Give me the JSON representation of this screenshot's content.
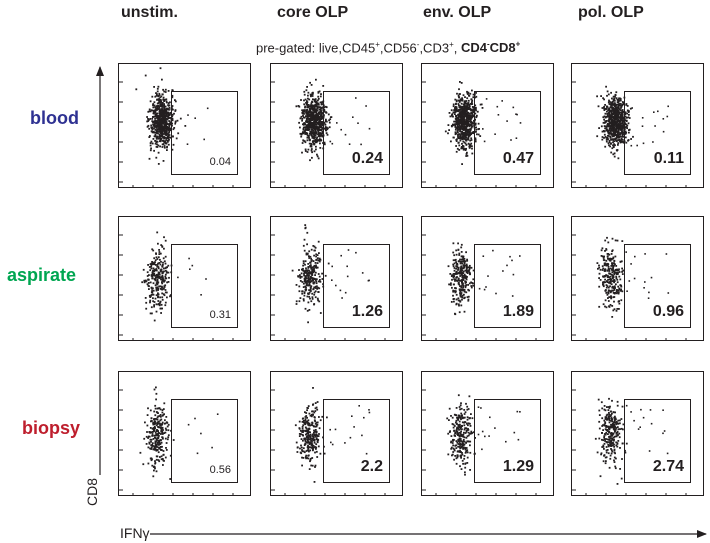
{
  "columns": [
    "unstim.",
    "core OLP",
    "env. OLP",
    "pol. OLP"
  ],
  "rows": [
    {
      "label": "blood",
      "color": "#2e3192"
    },
    {
      "label": "aspirate",
      "color": "#00a651"
    },
    {
      "label": "biopsy",
      "color": "#be1e2d"
    }
  ],
  "pregate": {
    "prefix": "pre-gated: live,CD45",
    "cd56": ",CD56",
    "cd3": ",CD3",
    "cd4": "CD4",
    "cd8": "CD8"
  },
  "axes": {
    "x_label": "IFNγ",
    "y_label": "CD8"
  },
  "panels": [
    [
      {
        "pct": "0.04",
        "bold": false
      },
      {
        "pct": "0.24",
        "bold": true
      },
      {
        "pct": "0.47",
        "bold": true
      },
      {
        "pct": "0.11",
        "bold": true
      }
    ],
    [
      {
        "pct": "0.31",
        "bold": false
      },
      {
        "pct": "1.26",
        "bold": true
      },
      {
        "pct": "1.89",
        "bold": true
      },
      {
        "pct": "0.96",
        "bold": true
      }
    ],
    [
      {
        "pct": "0.56",
        "bold": false
      },
      {
        "pct": "2.2",
        "bold": true
      },
      {
        "pct": "1.29",
        "bold": true
      },
      {
        "pct": "2.74",
        "bold": true
      }
    ]
  ]
}
